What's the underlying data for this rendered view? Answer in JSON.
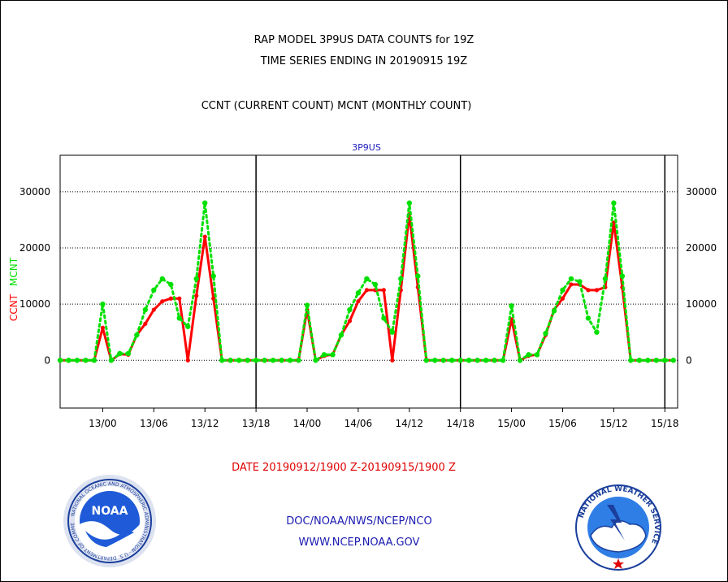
{
  "header": {
    "line1": "RAP MODEL 3P9US DATA COUNTS for 19Z",
    "line2": "TIME SERIES ENDING IN 20190915 19Z",
    "line3": "CCNT (CURRENT COUNT) MCNT (MONTHLY COUNT)"
  },
  "footer": {
    "date_range": "DATE 20190912/1900 Z-20190915/1900 Z",
    "org": "DOC/NOAA/NWS/NCEP/NCO",
    "url": "WWW.NCEP.NOAA.GOV"
  },
  "logos": {
    "left_text": "NOAA",
    "left_ring": "NATIONAL OCEANIC AND ATMOSPHERIC ADMINISTRATION · U.S. DEPARTMENT OF COMMERCE",
    "right_ring": "NATIONAL WEATHER SERVICE"
  },
  "colors": {
    "ccnt": "#ff0000",
    "mcnt": "#00e000",
    "panel_title": "#2020c0",
    "date_label": "#e00000",
    "links": "#1a1ab0"
  },
  "chart_data": {
    "type": "line",
    "title": "3P9US",
    "ylabel_parts": [
      "CCNT",
      "MCNT"
    ],
    "x_tick_labels": [
      "13/00",
      "13/06",
      "13/12",
      "13/18",
      "14/00",
      "14/06",
      "14/12",
      "14/18",
      "15/00",
      "15/06",
      "15/12",
      "15/18"
    ],
    "x_tick_hours": [
      5,
      11,
      17,
      23,
      29,
      35,
      41,
      47,
      53,
      59,
      65,
      71
    ],
    "xlim": [
      0,
      72.5
    ],
    "vlines_hours": [
      23,
      47,
      71
    ],
    "y_ticks": [
      0,
      10000,
      20000,
      30000
    ],
    "ylim": [
      -8500,
      36500
    ],
    "grid_y": true,
    "series": [
      {
        "name": "CCNT",
        "color": "#ff0000",
        "style": "solid",
        "x": [
          0,
          1,
          2,
          3,
          4,
          5,
          6,
          7,
          8,
          9,
          10,
          11,
          12,
          13,
          14,
          15,
          16,
          17,
          18,
          19,
          20,
          21,
          22,
          23,
          24,
          25,
          26,
          27,
          28,
          29,
          30,
          31,
          32,
          33,
          34,
          35,
          36,
          37,
          38,
          39,
          40,
          41,
          42,
          43,
          44,
          45,
          46,
          47,
          48,
          49,
          50,
          51,
          52,
          53,
          54,
          55,
          56,
          57,
          58,
          59,
          60,
          61,
          62,
          63,
          64,
          65,
          66,
          67,
          68,
          69,
          70,
          71,
          72
        ],
        "values": [
          0,
          0,
          0,
          0,
          0,
          5800,
          0,
          1100,
          1000,
          4500,
          6500,
          9000,
          10500,
          11000,
          11000,
          0,
          11500,
          22000,
          11000,
          0,
          0,
          0,
          0,
          0,
          0,
          0,
          0,
          0,
          0,
          9000,
          0,
          800,
          1000,
          4500,
          7000,
          10500,
          12500,
          12500,
          12500,
          0,
          12500,
          26000,
          13000,
          0,
          0,
          0,
          0,
          0,
          0,
          0,
          0,
          0,
          0,
          7300,
          0,
          800,
          1000,
          4500,
          9000,
          11000,
          13500,
          13500,
          12500,
          12500,
          13000,
          24500,
          13000,
          0,
          0,
          0,
          0,
          0,
          0
        ]
      },
      {
        "name": "MCNT",
        "color": "#00e000",
        "style": "dotted",
        "x": [
          0,
          1,
          2,
          3,
          4,
          5,
          6,
          7,
          8,
          9,
          10,
          11,
          12,
          13,
          14,
          15,
          16,
          17,
          18,
          19,
          20,
          21,
          22,
          23,
          24,
          25,
          26,
          27,
          28,
          29,
          30,
          31,
          32,
          33,
          34,
          35,
          36,
          37,
          38,
          39,
          40,
          41,
          42,
          43,
          44,
          45,
          46,
          47,
          48,
          49,
          50,
          51,
          52,
          53,
          54,
          55,
          56,
          57,
          58,
          59,
          60,
          61,
          62,
          63,
          64,
          65,
          66,
          67,
          68,
          69,
          70,
          71,
          72
        ],
        "values": [
          0,
          0,
          0,
          0,
          0,
          10000,
          0,
          1200,
          1200,
          4500,
          9000,
          12500,
          14500,
          13500,
          7500,
          6000,
          14500,
          28000,
          15000,
          0,
          0,
          0,
          0,
          0,
          0,
          0,
          0,
          0,
          0,
          9800,
          0,
          1000,
          1000,
          4500,
          9000,
          12000,
          14500,
          13500,
          7500,
          5000,
          14500,
          28000,
          15000,
          0,
          0,
          0,
          0,
          0,
          0,
          0,
          0,
          0,
          0,
          9700,
          0,
          1000,
          1000,
          4800,
          8800,
          12500,
          14500,
          14000,
          7500,
          5000,
          14500,
          28000,
          15000,
          0,
          0,
          0,
          0,
          0,
          0
        ]
      }
    ]
  }
}
